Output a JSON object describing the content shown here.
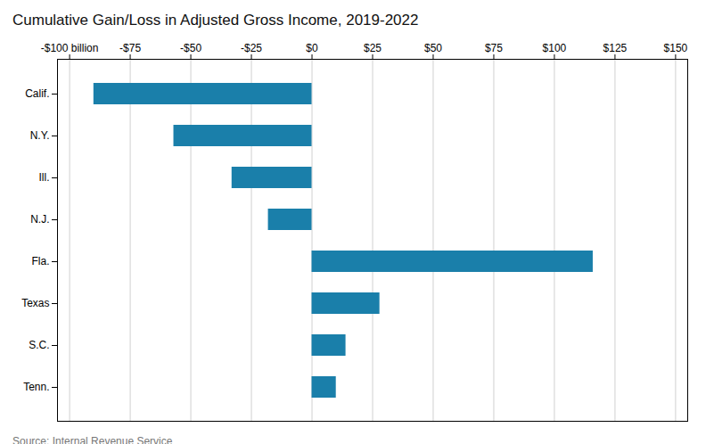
{
  "chart_data": {
    "type": "bar",
    "orientation": "horizontal",
    "title": "Cumulative Gain/Loss in Adjusted Gross Income, 2019-2022",
    "source": "Source: Internal Revenue Service",
    "categories": [
      "Calif.",
      "N.Y.",
      "Ill.",
      "N.J.",
      "Fla.",
      "Texas",
      "S.C.",
      "Tenn."
    ],
    "values": [
      -90,
      -57,
      -33,
      -18,
      116,
      28,
      14,
      10
    ],
    "color": "#1a7faa",
    "xlim": [
      -105,
      155
    ],
    "xticks": [
      {
        "value": -100,
        "label": "-$100 billion"
      },
      {
        "value": -75,
        "label": "-$75"
      },
      {
        "value": -50,
        "label": "-$50"
      },
      {
        "value": -25,
        "label": "-$25"
      },
      {
        "value": 0,
        "label": "$0"
      },
      {
        "value": 25,
        "label": "$25"
      },
      {
        "value": 50,
        "label": "$50"
      },
      {
        "value": 75,
        "label": "$75"
      },
      {
        "value": 100,
        "label": "$100"
      },
      {
        "value": 125,
        "label": "$125"
      },
      {
        "value": 150,
        "label": "$150"
      }
    ],
    "grid": true
  }
}
